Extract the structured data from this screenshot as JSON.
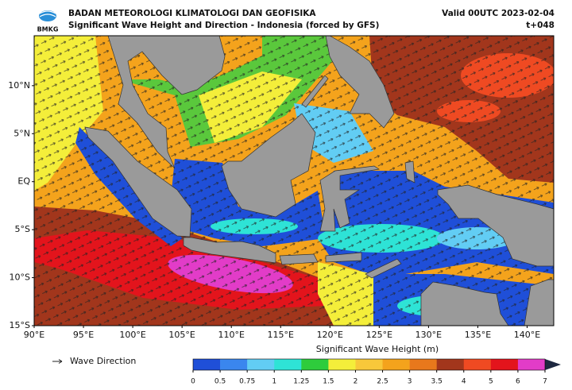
{
  "header": {
    "logo": "BMKG",
    "agency": "BADAN METEOROLOGI KLIMATOLOGI DAN GEOFISIKA",
    "title": "Significant Wave Height and Direction - Indonesia (forced by GFS)",
    "valid": "Valid 00UTC 2023-02-04",
    "lead": "t+048"
  },
  "map": {
    "lon_range": [
      90,
      142.7
    ],
    "lat_range": [
      -15,
      15.2
    ],
    "lat_ticks": [
      {
        "value": 10,
        "label": "10°N"
      },
      {
        "value": 5,
        "label": "5°N"
      },
      {
        "value": 0,
        "label": "EQ"
      },
      {
        "value": -5,
        "label": "5°S"
      },
      {
        "value": -10,
        "label": "10°S"
      },
      {
        "value": -15,
        "label": "15°S"
      }
    ],
    "lon_ticks": [
      {
        "value": 90,
        "label": "90°E"
      },
      {
        "value": 95,
        "label": "95°E"
      },
      {
        "value": 100,
        "label": "100°E"
      },
      {
        "value": 105,
        "label": "105°E"
      },
      {
        "value": 110,
        "label": "110°E"
      },
      {
        "value": 115,
        "label": "115°E"
      },
      {
        "value": 120,
        "label": "120°E"
      },
      {
        "value": 125,
        "label": "125°E"
      },
      {
        "value": 130,
        "label": "130°E"
      },
      {
        "value": 135,
        "label": "135°E"
      },
      {
        "value": 140,
        "label": "140°E"
      }
    ]
  },
  "legend": {
    "arrow_label": "Wave Direction"
  },
  "colorbar": {
    "label": "Significant Wave Height (m)",
    "ticks": [
      0,
      0.5,
      0.75,
      1,
      1.25,
      1.5,
      2,
      2.5,
      3,
      3.5,
      4,
      5,
      6,
      7
    ],
    "colors": [
      "#1f4fd8",
      "#3a86ee",
      "#62cdf4",
      "#2ee3d6",
      "#2ecc3c",
      "#f4ee3a",
      "#f8c83a",
      "#f4a31c",
      "#e8781c",
      "#a2361c",
      "#ef4a22",
      "#e3141c",
      "#e23cc8"
    ],
    "over_color": "#1e2840"
  }
}
